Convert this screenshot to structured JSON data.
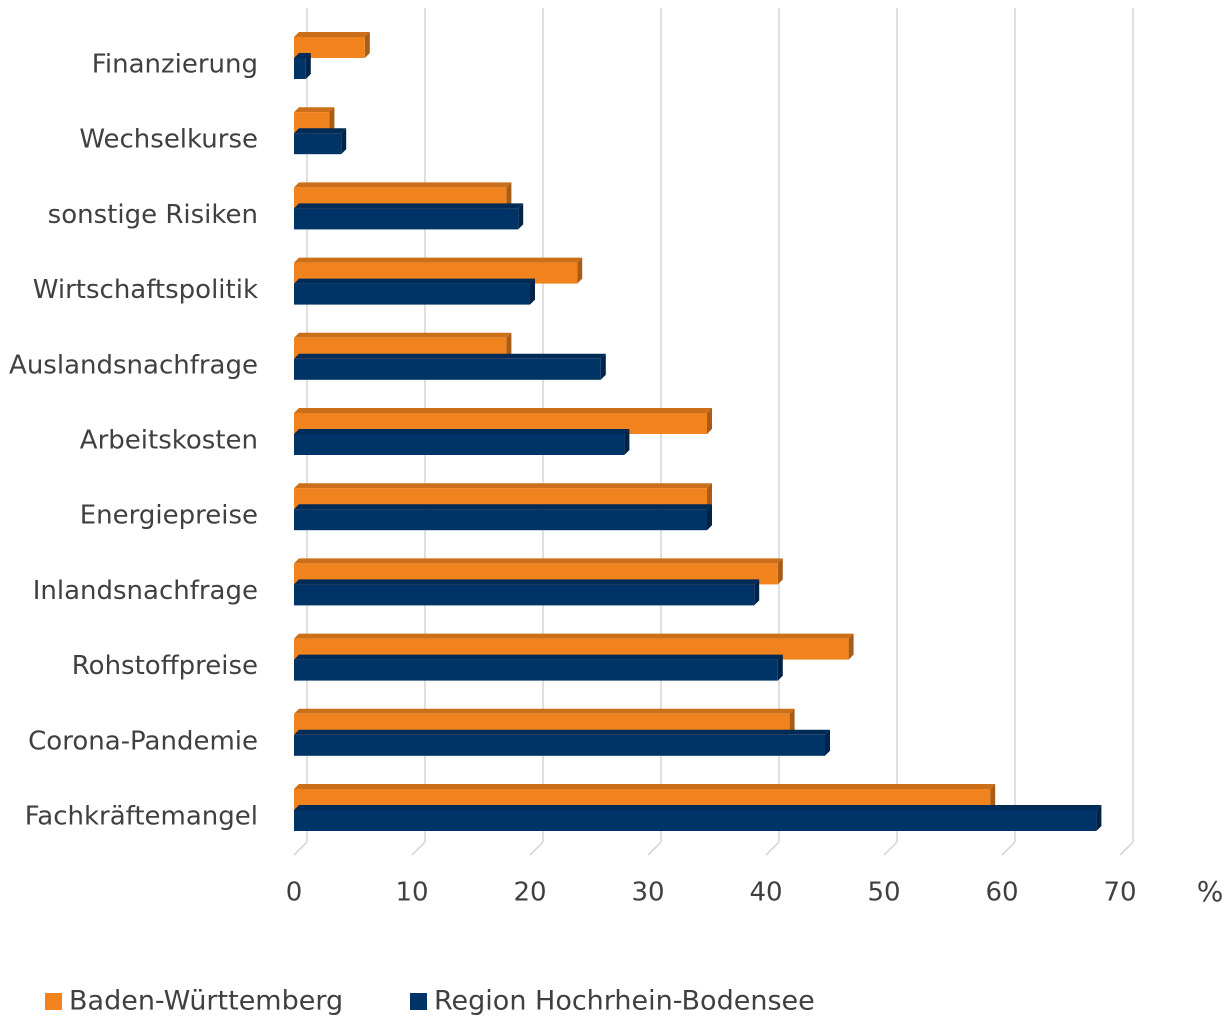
{
  "chart_data": {
    "type": "hbar",
    "categories": [
      "Finanzierung",
      "Wechselkurse",
      "sonstige Risiken",
      "Wirtschaftspolitik",
      "Auslandsnachfrage",
      "Arbeitskosten",
      "Energiepreise",
      "Inlandsnachfrage",
      "Rohstoffpreise",
      "Corona-Pandemie",
      "Fachkräftemangel"
    ],
    "series": [
      {
        "name": "Baden-Württemberg",
        "color": "#f0831e",
        "values": [
          6,
          3,
          18,
          24,
          18,
          35,
          35,
          41,
          47,
          42,
          59
        ]
      },
      {
        "name": "Region Hochrhein-Bodensee",
        "color": "#003366",
        "values": [
          1,
          4,
          19,
          20,
          26,
          28,
          35,
          39,
          41,
          45,
          68
        ]
      }
    ],
    "x_label": "%",
    "xlim": [
      0,
      70
    ],
    "xticks": [
      0,
      10,
      20,
      30,
      40,
      50,
      60,
      70
    ],
    "grid": true,
    "legend": "bottom"
  }
}
